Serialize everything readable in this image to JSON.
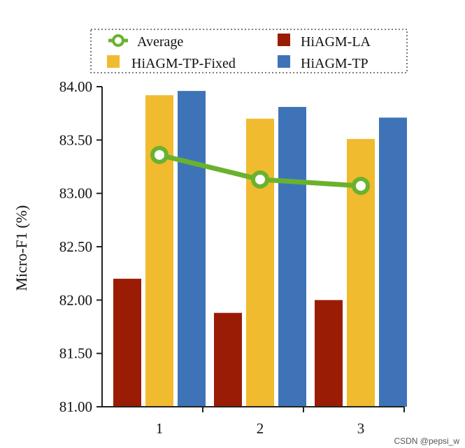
{
  "chart_data": {
    "type": "bar",
    "ylabel": "Micro-F1 (%)",
    "xlabel": "",
    "ylim": [
      81.0,
      84.0
    ],
    "yticks": [
      "81.00",
      "81.50",
      "82.00",
      "82.50",
      "83.00",
      "83.50",
      "84.00"
    ],
    "categories": [
      "1",
      "2",
      "3"
    ],
    "series": [
      {
        "name": "HiAGM-LA",
        "color": "#9b1c05",
        "values": [
          82.2,
          81.88,
          82.0
        ]
      },
      {
        "name": "HiAGM-TP-Fixed",
        "color": "#f0bb2e",
        "values": [
          83.92,
          83.7,
          83.51
        ]
      },
      {
        "name": "HiAGM-TP",
        "color": "#3f73b8",
        "values": [
          83.96,
          83.81,
          83.71
        ]
      }
    ],
    "line_series": {
      "name": "Average",
      "color": "#6ab22e",
      "values": [
        83.36,
        83.13,
        83.07
      ]
    },
    "legend": {
      "placement": "top",
      "entries": [
        "Average",
        "HiAGM-LA",
        "HiAGM-TP-Fixed",
        "HiAGM-TP"
      ]
    },
    "grid": false
  },
  "watermark": "CSDN @pepsi_w"
}
